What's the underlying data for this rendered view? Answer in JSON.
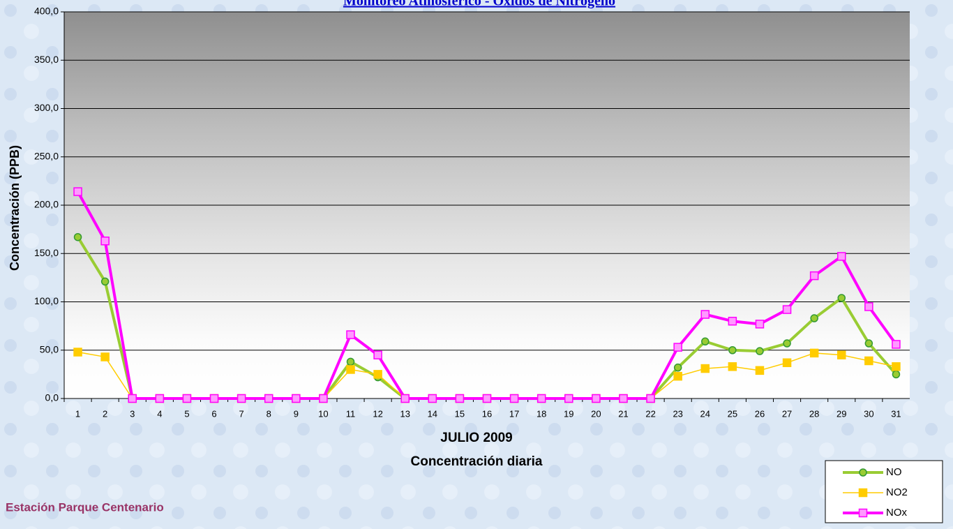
{
  "chart_data": {
    "type": "line",
    "title": "Monitoreo Atmosférico - Óxidos de Nitrógeno",
    "y_label": "Concentración  (PPB)",
    "x_label": "JULIO 2009",
    "subtitle": "Concentración diaria",
    "station": "Estación Parque Centenario",
    "categories": [
      "1",
      "2",
      "3",
      "4",
      "5",
      "6",
      "7",
      "8",
      "9",
      "10",
      "11",
      "12",
      "13",
      "14",
      "15",
      "16",
      "17",
      "18",
      "19",
      "20",
      "21",
      "22",
      "23",
      "24",
      "25",
      "26",
      "27",
      "28",
      "29",
      "30",
      "31"
    ],
    "series": [
      {
        "name": "NO",
        "color": "#99cc33",
        "marker": "circle",
        "values": [
          167,
          121,
          0,
          0,
          0,
          0,
          0,
          0,
          0,
          0,
          38,
          22,
          0,
          0,
          0,
          0,
          0,
          0,
          0,
          0,
          0,
          0,
          32,
          59,
          50,
          49,
          57,
          83,
          104,
          57,
          25
        ]
      },
      {
        "name": "NO2",
        "color": "#ffcc00",
        "marker": "square",
        "values": [
          48,
          43,
          0,
          0,
          0,
          0,
          0,
          0,
          0,
          0,
          30,
          25,
          0,
          0,
          0,
          0,
          0,
          0,
          0,
          0,
          0,
          0,
          23,
          31,
          33,
          29,
          37,
          47,
          45,
          39,
          33
        ]
      },
      {
        "name": "NOx",
        "color": "#ff00ff",
        "marker": "square",
        "values": [
          214,
          163,
          0,
          0,
          0,
          0,
          0,
          0,
          0,
          0,
          66,
          45,
          0,
          0,
          0,
          0,
          0,
          0,
          0,
          0,
          0,
          0,
          53,
          87,
          80,
          77,
          92,
          127,
          147,
          95,
          56
        ]
      }
    ],
    "ylim": [
      0,
      400
    ],
    "yticks": [
      {
        "value": 0,
        "label": "0,0"
      },
      {
        "value": 50,
        "label": "50,0"
      },
      {
        "value": 100,
        "label": "100,0"
      },
      {
        "value": 150,
        "label": "150,0"
      },
      {
        "value": 200,
        "label": "200,0"
      },
      {
        "value": 250,
        "label": "250,0"
      },
      {
        "value": 300,
        "label": "300,0"
      },
      {
        "value": 350,
        "label": "350,0"
      },
      {
        "value": 400,
        "label": "400,0"
      }
    ],
    "grid": true
  }
}
